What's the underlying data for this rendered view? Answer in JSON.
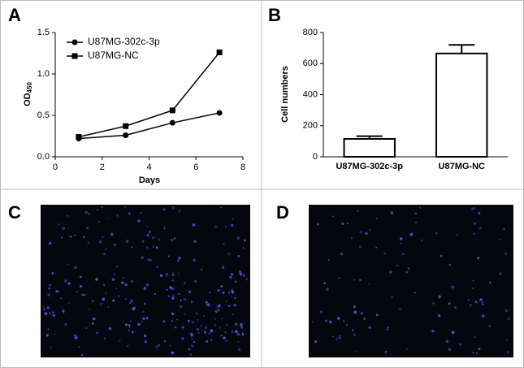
{
  "panel_labels": [
    "A",
    "B",
    "C",
    "D"
  ],
  "chart_data": [
    {
      "type": "line",
      "x_label": "Days",
      "y_label": "OD",
      "y_label_sub": "450",
      "x": [
        1,
        3,
        5,
        7
      ],
      "series": [
        {
          "name": "U87MG-302c-3p",
          "color": "#000000",
          "marker": "circle",
          "values": [
            0.22,
            0.26,
            0.41,
            0.53
          ]
        },
        {
          "name": "U87MG-NC",
          "color": "#000000",
          "marker": "square",
          "values": [
            0.24,
            0.37,
            0.56,
            1.26
          ]
        }
      ],
      "xlim": [
        0,
        8
      ],
      "xticks": [
        0,
        2,
        4,
        6,
        8
      ],
      "ylim": [
        0,
        1.5
      ],
      "yticks": [
        {
          "value": 0,
          "label": "0.0"
        },
        0.5,
        {
          "value": 1,
          "label": "1.0"
        },
        1.5
      ],
      "legend": "top-left"
    },
    {
      "type": "bar",
      "y_label": "Cell numbers",
      "categories": [
        "U87MG-302c-3p",
        "U87MG-NC"
      ],
      "values": [
        115,
        665
      ],
      "errors": [
        18,
        55
      ],
      "color": "#ffffff",
      "ylim": [
        0,
        800
      ],
      "yticks": [
        0,
        200,
        400,
        600,
        800
      ]
    }
  ]
}
